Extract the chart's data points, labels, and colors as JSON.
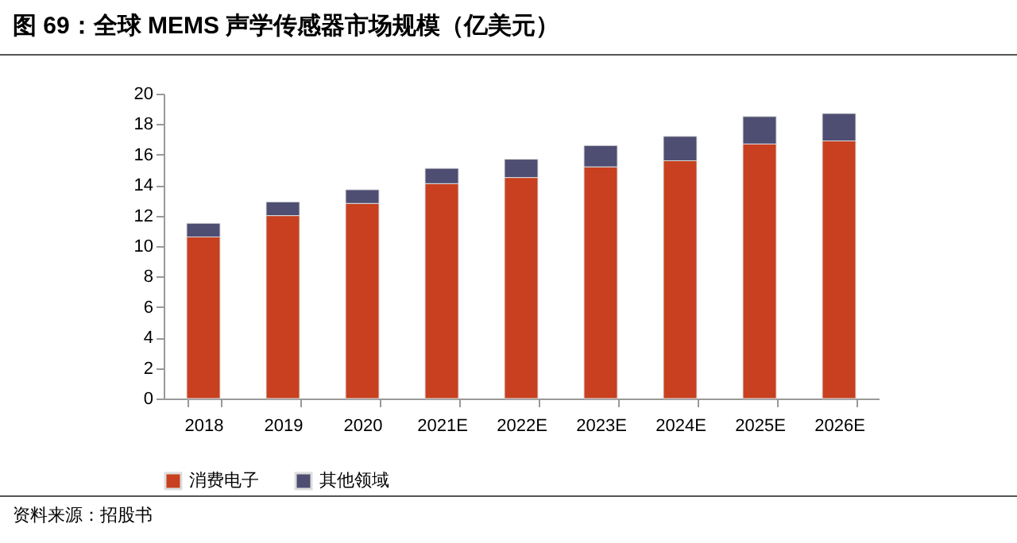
{
  "chart_data": {
    "type": "bar",
    "title": "图 69：全球 MEMS 声学传感器市场规模（亿美元）",
    "categories": [
      "2018",
      "2019",
      "2020",
      "2021E",
      "2022E",
      "2023E",
      "2024E",
      "2025E",
      "2026E"
    ],
    "stacked": true,
    "series": [
      {
        "name": "消费电子",
        "color": "#c8401f",
        "values": [
          10.6,
          12.0,
          12.8,
          14.1,
          14.5,
          15.2,
          15.6,
          16.7,
          16.9
        ]
      },
      {
        "name": "其他领域",
        "color": "#4e4d72",
        "values": [
          0.9,
          0.9,
          0.9,
          1.0,
          1.2,
          1.4,
          1.6,
          1.8,
          1.8
        ]
      }
    ],
    "ylim": [
      0,
      20
    ],
    "yticks": [
      0,
      2,
      4,
      6,
      8,
      10,
      12,
      14,
      16,
      18,
      20
    ],
    "grid": false,
    "legend": "bottom",
    "annotations": [
      "资料来源：招股书"
    ]
  }
}
